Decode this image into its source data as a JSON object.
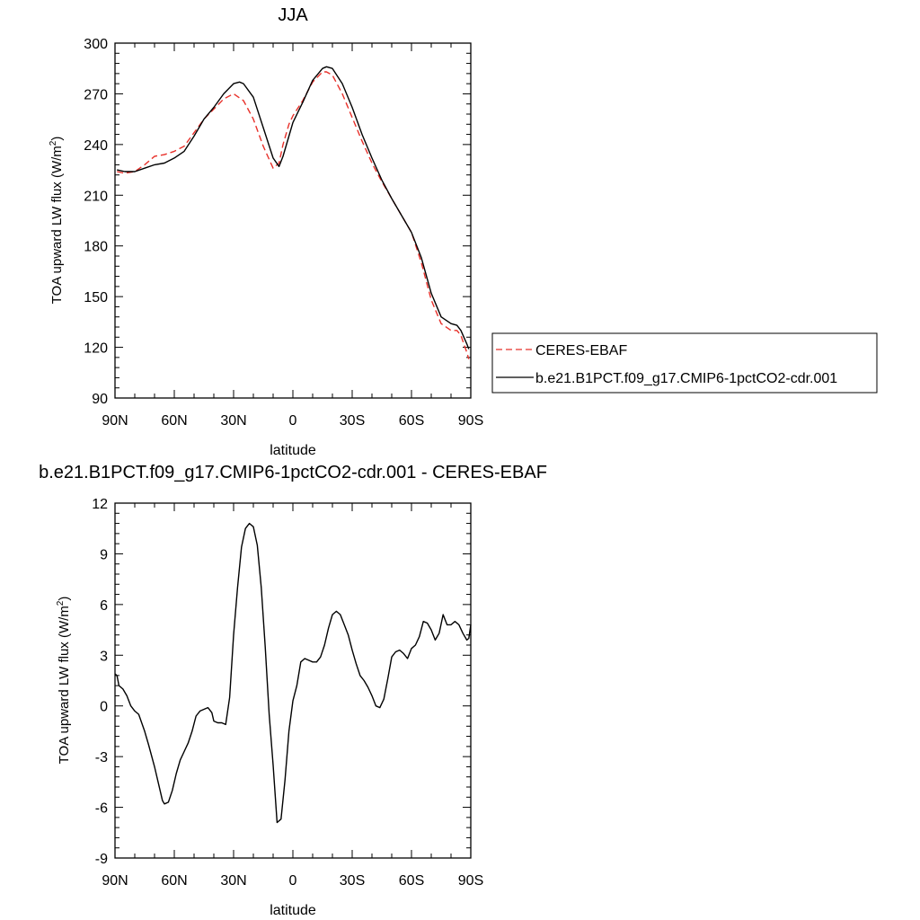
{
  "chart_data": [
    {
      "type": "line",
      "title": "JJA",
      "xlabel": "latitude",
      "ylabel": "TOA upward LW flux (W/m²)",
      "ylabel_main": "TOA upward LW flux (W/m",
      "ylabel_sup": "2",
      "ylabel_tail": ")",
      "xlim": [
        90,
        -90
      ],
      "ylim": [
        90,
        300
      ],
      "x_ticks": [
        90,
        60,
        30,
        0,
        -30,
        -60,
        -90
      ],
      "x_tick_labels": [
        "90N",
        "60N",
        "30N",
        "0",
        "30S",
        "60S",
        "90S"
      ],
      "y_ticks": [
        90,
        120,
        150,
        180,
        210,
        240,
        270,
        300
      ],
      "y_tick_labels": [
        "90",
        "120",
        "150",
        "180",
        "210",
        "240",
        "270",
        "300"
      ],
      "legend": {
        "position": "right",
        "entries": [
          "CERES-EBAF",
          "b.e21.B1PCT.f09_g17.CMIP6-1pctCO2-cdr.001"
        ]
      },
      "series": [
        {
          "name": "CERES-EBAF",
          "color": "#e8302a",
          "dash": true,
          "x": [
            89,
            85,
            80,
            75,
            70,
            65,
            60,
            55,
            50,
            45,
            40,
            35,
            30,
            25,
            20,
            15,
            10,
            7,
            5,
            2,
            0,
            -5,
            -10,
            -15,
            -17,
            -20,
            -25,
            -30,
            -35,
            -40,
            -45,
            -50,
            -55,
            -60,
            -65,
            -70,
            -75,
            -80,
            -83,
            -85,
            -88,
            -89
          ],
          "y": [
            224,
            223,
            224,
            228,
            233,
            234,
            236,
            239,
            247,
            255,
            261,
            267,
            270,
            266,
            255,
            239,
            226,
            229,
            240,
            252,
            257,
            266,
            277,
            283,
            283,
            281,
            270,
            256,
            242,
            229,
            218,
            208,
            198,
            188,
            170,
            148,
            134,
            130,
            130,
            127,
            117,
            113
          ]
        },
        {
          "name": "b.e21.B1PCT.f09_g17.CMIP6-1pctCO2-cdr.001",
          "color": "#000000",
          "dash": false,
          "x": [
            89,
            85,
            80,
            75,
            70,
            65,
            60,
            55,
            50,
            45,
            40,
            35,
            30,
            27,
            25,
            20,
            15,
            10,
            7,
            5,
            2,
            0,
            -5,
            -10,
            -15,
            -17,
            -20,
            -25,
            -30,
            -35,
            -40,
            -45,
            -50,
            -55,
            -60,
            -65,
            -70,
            -75,
            -80,
            -83,
            -85,
            -88,
            -89
          ],
          "y": [
            225,
            224,
            224,
            226,
            228,
            229,
            232,
            236,
            245,
            255,
            262,
            270,
            276,
            277,
            276,
            268,
            250,
            232,
            227,
            233,
            245,
            253,
            265,
            278,
            285,
            286,
            285,
            276,
            262,
            246,
            232,
            219,
            208,
            198,
            188,
            173,
            152,
            138,
            134,
            133,
            130,
            122,
            119
          ]
        }
      ]
    },
    {
      "type": "line",
      "title": "b.e21.B1PCT.f09_g17.CMIP6-1pctCO2-cdr.001 - CERES-EBAF",
      "xlabel": "latitude",
      "ylabel": "TOA upward LW flux (W/m²)",
      "ylabel_main": "TOA upward LW flux (W/m",
      "ylabel_sup": "2",
      "ylabel_tail": ")",
      "xlim": [
        90,
        -90
      ],
      "ylim": [
        -9,
        12
      ],
      "x_ticks": [
        90,
        60,
        30,
        0,
        -30,
        -60,
        -90
      ],
      "x_tick_labels": [
        "90N",
        "60N",
        "30N",
        "0",
        "30S",
        "60S",
        "90S"
      ],
      "y_ticks": [
        -9,
        -6,
        -3,
        0,
        3,
        6,
        9,
        12
      ],
      "y_tick_labels": [
        "-9",
        "-6",
        "-3",
        "0",
        "3",
        "6",
        "9",
        "12"
      ],
      "series": [
        {
          "color": "#000000",
          "dash": false,
          "x": [
            90,
            89,
            88,
            86,
            84,
            82,
            80,
            78,
            75,
            73,
            70,
            68,
            66,
            65,
            63,
            61,
            59,
            57,
            55,
            53,
            51,
            49,
            47,
            45,
            43,
            41,
            40,
            38,
            36,
            34,
            32,
            30,
            28,
            26,
            24,
            22,
            20,
            18,
            16,
            14,
            12,
            10,
            8,
            6,
            4,
            2,
            0,
            -2,
            -4,
            -6,
            -8,
            -10,
            -12,
            -14,
            -16,
            -18,
            -20,
            -22,
            -24,
            -26,
            -28,
            -30,
            -32,
            -34,
            -36,
            -38,
            -40,
            -42,
            -44,
            -46,
            -48,
            -50,
            -52,
            -54,
            -56,
            -58,
            -60,
            -62,
            -64,
            -66,
            -68,
            -70,
            -72,
            -74,
            -76,
            -78,
            -80,
            -82,
            -84,
            -86,
            -88,
            -89,
            -90
          ],
          "y": [
            1.9,
            1.8,
            1.2,
            1.0,
            0.6,
            0.0,
            -0.3,
            -0.5,
            -1.5,
            -2.3,
            -3.6,
            -4.6,
            -5.6,
            -5.8,
            -5.7,
            -5.0,
            -4.0,
            -3.2,
            -2.7,
            -2.2,
            -1.5,
            -0.6,
            -0.3,
            -0.2,
            -0.1,
            -0.4,
            -0.9,
            -1.0,
            -1.0,
            -1.1,
            0.5,
            4.2,
            7.0,
            9.4,
            10.5,
            10.8,
            10.6,
            9.5,
            7.0,
            3.5,
            -0.5,
            -3.5,
            -6.9,
            -6.7,
            -4.4,
            -1.5,
            0.3,
            1.2,
            2.6,
            2.8,
            2.7,
            2.6,
            2.6,
            2.9,
            3.6,
            4.6,
            5.4,
            5.6,
            5.4,
            4.8,
            4.2,
            3.3,
            2.5,
            1.8,
            1.5,
            1.1,
            0.6,
            0.0,
            -0.1,
            0.4,
            1.6,
            2.9,
            3.2,
            3.3,
            3.1,
            2.8,
            3.4,
            3.6,
            4.1,
            5.0,
            4.9,
            4.5,
            3.9,
            4.3,
            5.4,
            4.8,
            4.8,
            5.0,
            4.8,
            4.3,
            3.9,
            4.0,
            4.8
          ]
        }
      ]
    }
  ]
}
